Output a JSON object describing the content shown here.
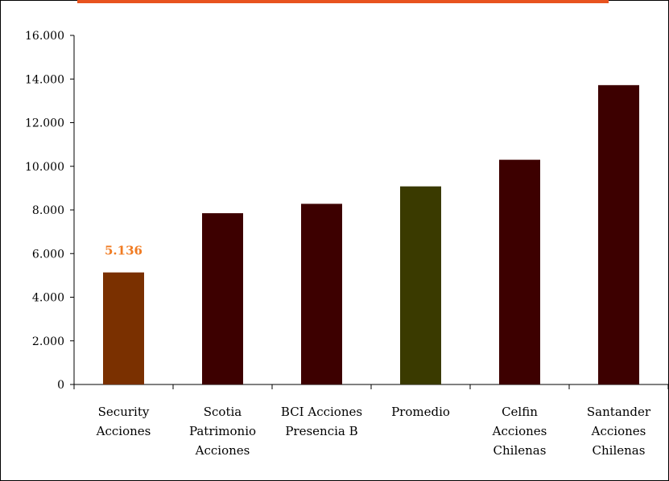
{
  "colors": {
    "accent_bar": "#e8531f",
    "highlight": "#7a3000",
    "default_bar": "#3d0000",
    "average_bar": "#3a3a00",
    "data_label": "#f07b22"
  },
  "chart_data": {
    "type": "bar",
    "title": "",
    "xlabel": "",
    "ylabel": "",
    "ylim": [
      0,
      16000
    ],
    "yticks": [
      0,
      2000,
      4000,
      6000,
      8000,
      10000,
      12000,
      14000,
      16000
    ],
    "ytick_labels": [
      "0",
      "2.000",
      "4.000",
      "6.000",
      "8.000",
      "10.000",
      "12.000",
      "14.000",
      "16.000"
    ],
    "grid": false,
    "legend": "none",
    "categories": [
      [
        "Security",
        "Acciones"
      ],
      [
        "Scotia",
        "Patrimonio",
        "Acciones"
      ],
      [
        "BCI Acciones",
        "Presencia B"
      ],
      [
        "Promedio"
      ],
      [
        "Celfin",
        "Acciones",
        "Chilenas"
      ],
      [
        "Santander",
        "Acciones",
        "Chilenas"
      ]
    ],
    "values": [
      5136,
      7850,
      8280,
      9080,
      10300,
      13720
    ],
    "bar_colors": [
      "#7a3000",
      "#3d0000",
      "#3d0000",
      "#3a3a00",
      "#3d0000",
      "#3d0000"
    ],
    "data_labels": [
      {
        "index": 0,
        "text": "5.136"
      }
    ]
  }
}
